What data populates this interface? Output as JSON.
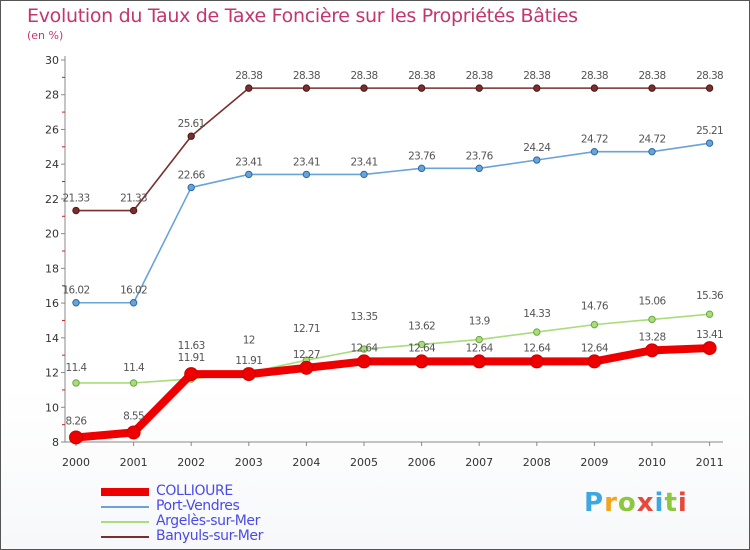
{
  "header": {
    "title": "Evolution du Taux de Taxe Foncière sur les Propriétés Bâties",
    "unit": "(en %)"
  },
  "brand": {
    "letters": [
      "P",
      "r",
      "o",
      "x",
      "i",
      "t",
      "i"
    ],
    "colors": [
      "#3ea7e0",
      "#f0a51c",
      "#8dc63f",
      "#e8483a",
      "#3ea7e0",
      "#8dc63f",
      "#e8483a"
    ]
  },
  "chart_data": {
    "type": "line",
    "title": "Evolution du Taux de Taxe Foncière sur les Propriétés Bâties",
    "ylabel": "(en %)",
    "xlabel": "",
    "categories": [
      "2000",
      "2001",
      "2002",
      "2003",
      "2004",
      "2005",
      "2006",
      "2007",
      "2008",
      "2009",
      "2010",
      "2011"
    ],
    "ylim": [
      8,
      30
    ],
    "yticks": [
      8,
      10,
      12,
      14,
      16,
      18,
      20,
      22,
      24,
      26,
      28,
      30
    ],
    "grid": false,
    "legend_position": "bottom-left",
    "series": [
      {
        "name": "COLLIOURE",
        "color": "#ee0000",
        "values": [
          8.26,
          8.55,
          11.91,
          11.91,
          12.27,
          12.64,
          12.64,
          12.64,
          12.64,
          12.64,
          13.28,
          13.41
        ],
        "labels": [
          "8.26",
          "8.55",
          "11.91",
          "11.91",
          "12.27",
          "12.64",
          "12.64",
          "12.64",
          "12.64",
          "12.64",
          "13.28",
          "13.41"
        ]
      },
      {
        "name": "Port-Vendres",
        "color": "#6aa3d5",
        "values": [
          16.02,
          16.02,
          22.66,
          23.41,
          23.41,
          23.41,
          23.76,
          23.76,
          24.24,
          24.72,
          24.72,
          25.21
        ],
        "labels": [
          "16.02",
          "16.02",
          "22.66",
          "23.41",
          "23.41",
          "23.41",
          "23.76",
          "23.76",
          "24.24",
          "24.72",
          "24.72",
          "25.21"
        ]
      },
      {
        "name": "Argelès-sur-Mer",
        "color": "#a8dc7c",
        "values": [
          11.4,
          11.4,
          11.63,
          12.0,
          12.71,
          13.35,
          13.62,
          13.9,
          14.33,
          14.76,
          15.06,
          15.36
        ],
        "labels": [
          "11.4",
          "11.4",
          "11.63",
          "12",
          "12.71",
          "13.35",
          "13.62",
          "13.9",
          "14.33",
          "14.76",
          "15.06",
          "15.36"
        ]
      },
      {
        "name": "Banyuls-sur-Mer",
        "color": "#7b2e2e",
        "values": [
          21.33,
          21.33,
          25.61,
          28.38,
          28.38,
          28.38,
          28.38,
          28.38,
          28.38,
          28.38,
          28.38,
          28.38
        ],
        "labels": [
          "21.33",
          "21.33",
          "25.61",
          "28.38",
          "28.38",
          "28.38",
          "28.38",
          "28.38",
          "28.38",
          "28.38",
          "28.38",
          "28.38"
        ]
      }
    ]
  }
}
